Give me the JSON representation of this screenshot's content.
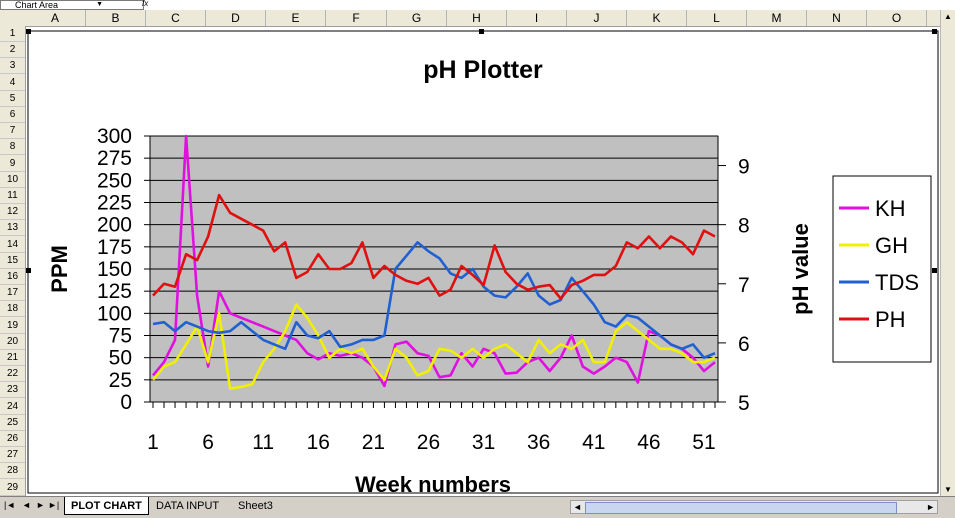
{
  "app": {
    "name_box": "Chart Area",
    "formula_icon": "fx",
    "columns": [
      "A",
      "B",
      "C",
      "D",
      "E",
      "F",
      "G",
      "H",
      "I",
      "J",
      "K",
      "L",
      "M",
      "N",
      "O"
    ],
    "rows": [
      "1",
      "2",
      "3",
      "4",
      "5",
      "6",
      "7",
      "8",
      "9",
      "10",
      "11",
      "12",
      "13",
      "14",
      "15",
      "16",
      "17",
      "18",
      "19",
      "20",
      "21",
      "22",
      "23",
      "24",
      "25",
      "26",
      "27",
      "28",
      "29"
    ],
    "sheet_tabs": [
      {
        "label": "PLOT CHART",
        "active": true
      },
      {
        "label": "DATA INPUT",
        "active": false
      },
      {
        "label": "Sheet3",
        "active": false
      }
    ]
  },
  "chart_data": {
    "type": "line",
    "title": "pH Plotter",
    "xlabel": "Week numbers",
    "ylabel": "PPM",
    "y2label": "pH value",
    "x": [
      1,
      2,
      3,
      4,
      5,
      6,
      7,
      8,
      9,
      10,
      11,
      12,
      13,
      14,
      15,
      16,
      17,
      18,
      19,
      20,
      21,
      22,
      23,
      24,
      25,
      26,
      27,
      28,
      29,
      30,
      31,
      32,
      33,
      34,
      35,
      36,
      37,
      38,
      39,
      40,
      41,
      42,
      43,
      44,
      45,
      46,
      47,
      48,
      49,
      50,
      51,
      52
    ],
    "x_ticks": [
      1,
      6,
      11,
      16,
      21,
      26,
      31,
      36,
      41,
      46,
      51
    ],
    "ylim": [
      0,
      300
    ],
    "y_ticks": [
      0,
      25,
      50,
      75,
      100,
      125,
      150,
      175,
      200,
      225,
      250,
      275,
      300
    ],
    "y2lim": [
      5,
      9.5
    ],
    "y2_ticks": [
      5,
      6,
      7,
      8,
      9
    ],
    "grid": "horizontal",
    "plot_background": "#c0c0c0",
    "legend": "right",
    "series": [
      {
        "name": "KH",
        "axis": "left",
        "color": "#e010e0",
        "values": [
          30,
          45,
          70,
          300,
          120,
          40,
          125,
          100,
          95,
          90,
          85,
          80,
          75,
          70,
          55,
          48,
          55,
          52,
          55,
          50,
          40,
          18,
          65,
          68,
          55,
          52,
          28,
          30,
          55,
          40,
          60,
          55,
          32,
          33,
          45,
          50,
          35,
          50,
          75,
          40,
          32,
          40,
          50,
          45,
          22,
          80,
          75,
          65,
          60,
          50,
          35,
          45
        ]
      },
      {
        "name": "GH",
        "axis": "left",
        "color": "#f0f000",
        "values": [
          25,
          40,
          45,
          65,
          85,
          45,
          100,
          15,
          17,
          20,
          45,
          60,
          80,
          110,
          95,
          75,
          50,
          60,
          55,
          60,
          40,
          25,
          60,
          50,
          30,
          35,
          60,
          58,
          50,
          60,
          50,
          60,
          65,
          55,
          45,
          70,
          55,
          65,
          60,
          70,
          45,
          45,
          80,
          90,
          80,
          70,
          60,
          60,
          55,
          45,
          45,
          50
        ]
      },
      {
        "name": "TDS",
        "axis": "left",
        "color": "#2060d0",
        "values": [
          88,
          90,
          80,
          90,
          85,
          80,
          78,
          80,
          90,
          80,
          70,
          65,
          60,
          90,
          75,
          72,
          80,
          62,
          65,
          70,
          70,
          75,
          150,
          165,
          180,
          170,
          162,
          145,
          140,
          150,
          130,
          120,
          118,
          130,
          145,
          120,
          110,
          115,
          140,
          125,
          110,
          90,
          85,
          98,
          95,
          85,
          75,
          65,
          60,
          65,
          50,
          55
        ]
      },
      {
        "name": "PH",
        "axis": "right",
        "color": "#e01010",
        "values": [
          6.8,
          7.0,
          6.95,
          7.5,
          7.4,
          7.8,
          8.5,
          8.2,
          8.1,
          8.0,
          7.9,
          7.55,
          7.7,
          7.1,
          7.2,
          7.5,
          7.25,
          7.25,
          7.35,
          7.7,
          7.1,
          7.3,
          7.15,
          7.05,
          7.0,
          7.1,
          6.8,
          6.9,
          7.3,
          7.15,
          6.98,
          7.65,
          7.2,
          7.0,
          6.9,
          6.95,
          6.98,
          6.75,
          6.98,
          7.05,
          7.15,
          7.15,
          7.3,
          7.7,
          7.6,
          7.8,
          7.6,
          7.8,
          7.7,
          7.5,
          7.9,
          7.8
        ]
      }
    ]
  }
}
